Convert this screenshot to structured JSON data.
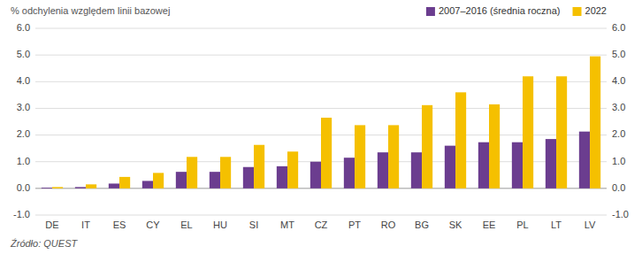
{
  "chart_data": {
    "type": "bar",
    "ylabel": "% odchylenia względem linii bazowej",
    "categories": [
      "DE",
      "IT",
      "ES",
      "CY",
      "EL",
      "HU",
      "SI",
      "MT",
      "CZ",
      "PT",
      "RO",
      "BG",
      "SK",
      "EE",
      "PL",
      "LT",
      "LV"
    ],
    "series": [
      {
        "name": "2007–2016 (średnia roczna)",
        "color": "#6b3d8f",
        "values": [
          0.03,
          0.05,
          0.18,
          0.28,
          0.62,
          0.62,
          0.8,
          0.83,
          1.0,
          1.15,
          1.35,
          1.35,
          1.6,
          1.73,
          1.73,
          1.85,
          2.13
        ]
      },
      {
        "name": "2022",
        "color": "#f5c000",
        "values": [
          0.05,
          0.15,
          0.43,
          0.58,
          1.18,
          1.18,
          1.63,
          1.38,
          2.65,
          2.37,
          2.37,
          3.12,
          3.6,
          3.15,
          4.2,
          4.2,
          4.95
        ]
      }
    ],
    "ylim": [
      -1.0,
      6.0
    ],
    "yticks": [
      {
        "value": -1.0,
        "label": "-1.0"
      },
      {
        "value": 0.0,
        "label": "0.0"
      },
      {
        "value": 1.0,
        "label": "1.0"
      },
      {
        "value": 2.0,
        "label": "2.0"
      },
      {
        "value": 3.0,
        "label": "3.0"
      },
      {
        "value": 4.0,
        "label": "4.0"
      },
      {
        "value": 5.0,
        "label": "5.0"
      },
      {
        "value": 6.0,
        "label": "6.0"
      }
    ],
    "y2lim": [
      -1.0,
      6.0
    ],
    "y2ticks": [
      {
        "value": -1.0,
        "label": "-1.0"
      },
      {
        "value": 0.0,
        "label": "0.0"
      },
      {
        "value": 1.0,
        "label": "1.0"
      },
      {
        "value": 2.0,
        "label": "2.0"
      },
      {
        "value": 3.0,
        "label": "3.0"
      },
      {
        "value": 4.0,
        "label": "4.0"
      },
      {
        "value": 5.0,
        "label": "5.0"
      },
      {
        "value": 6.0,
        "label": "6.0"
      }
    ],
    "grid": true,
    "legend": "upper right",
    "annotations": [
      "Źródło: QUEST"
    ]
  }
}
